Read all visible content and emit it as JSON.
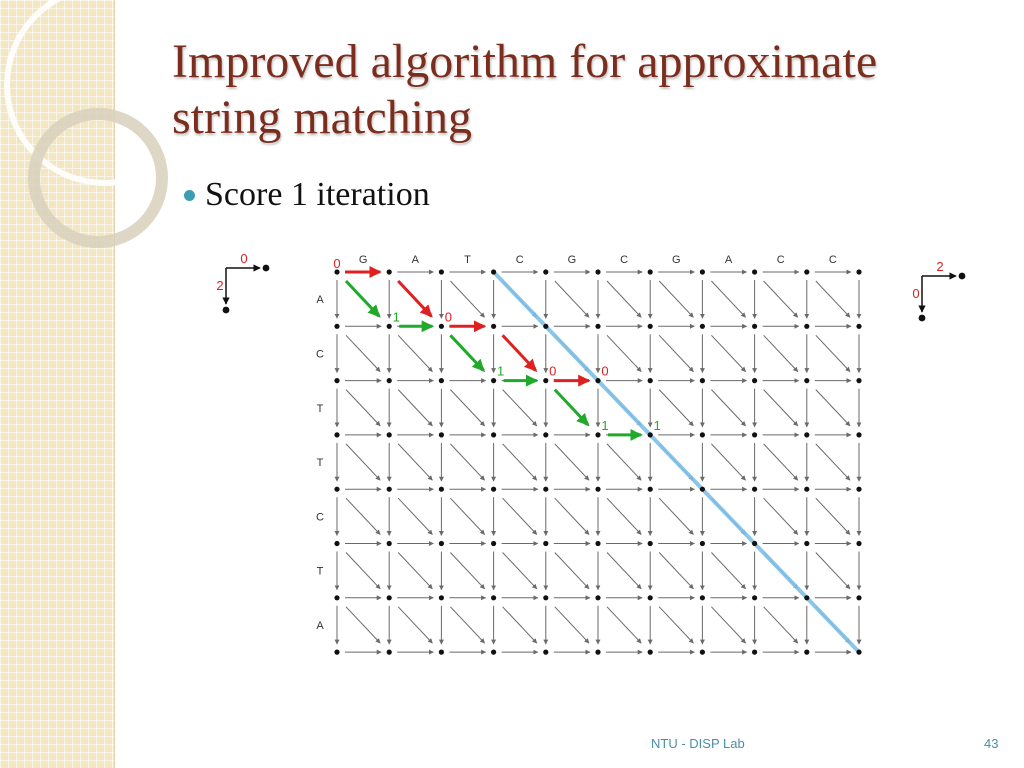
{
  "slide": {
    "title_line1": "Improved algorithm for approximate",
    "title_line2": "string matching",
    "bullet": "Score 1 iteration",
    "footer_center": "NTU - DISP Lab",
    "footer_page": "43"
  },
  "diagram": {
    "top_sequence": [
      "G",
      "A",
      "T",
      "C",
      "G",
      "C",
      "G",
      "A",
      "C",
      "C"
    ],
    "left_sequence": [
      "A",
      "C",
      "T",
      "T",
      "C",
      "T",
      "A"
    ],
    "origin_label": "0",
    "legend_left": {
      "horizontal_weight": "0",
      "vertical_weight": "2"
    },
    "legend_right": {
      "horizontal_weight": "2",
      "vertical_weight": "0"
    },
    "path_labels": [
      {
        "text": "1",
        "color": "green",
        "node": [
          1,
          1
        ]
      },
      {
        "text": "0",
        "color": "red",
        "node": [
          2,
          1
        ]
      },
      {
        "text": "1",
        "color": "green",
        "node": [
          3,
          2
        ]
      },
      {
        "text": "0",
        "color": "red",
        "node": [
          4,
          2
        ]
      },
      {
        "text": "0",
        "color": "red",
        "node": [
          5,
          2
        ]
      },
      {
        "text": "1",
        "color": "green",
        "node": [
          5,
          3
        ]
      },
      {
        "text": "1",
        "color": "green",
        "node": [
          6,
          3
        ]
      }
    ],
    "red_horizontal": [
      [
        0,
        0
      ],
      [
        2,
        1
      ],
      [
        4,
        2
      ]
    ],
    "red_diagonal": [
      [
        1,
        0
      ],
      [
        3,
        1
      ]
    ],
    "green_horizontal": [
      [
        1,
        1
      ],
      [
        3,
        2
      ],
      [
        5,
        3
      ]
    ],
    "green_diagonal": [
      [
        0,
        0
      ],
      [
        2,
        1
      ],
      [
        4,
        2
      ]
    ],
    "blue_path": [
      [
        3,
        0
      ],
      [
        10,
        7
      ]
    ],
    "colors": {
      "title": "#7b2e1e",
      "bullet": "#3d9db3",
      "red_edge": "#e02020",
      "green_edge": "#1faa2a",
      "blue_path": "#7ec0e8",
      "grid_arrow": "#6a6a6a",
      "node": "#111111"
    }
  }
}
